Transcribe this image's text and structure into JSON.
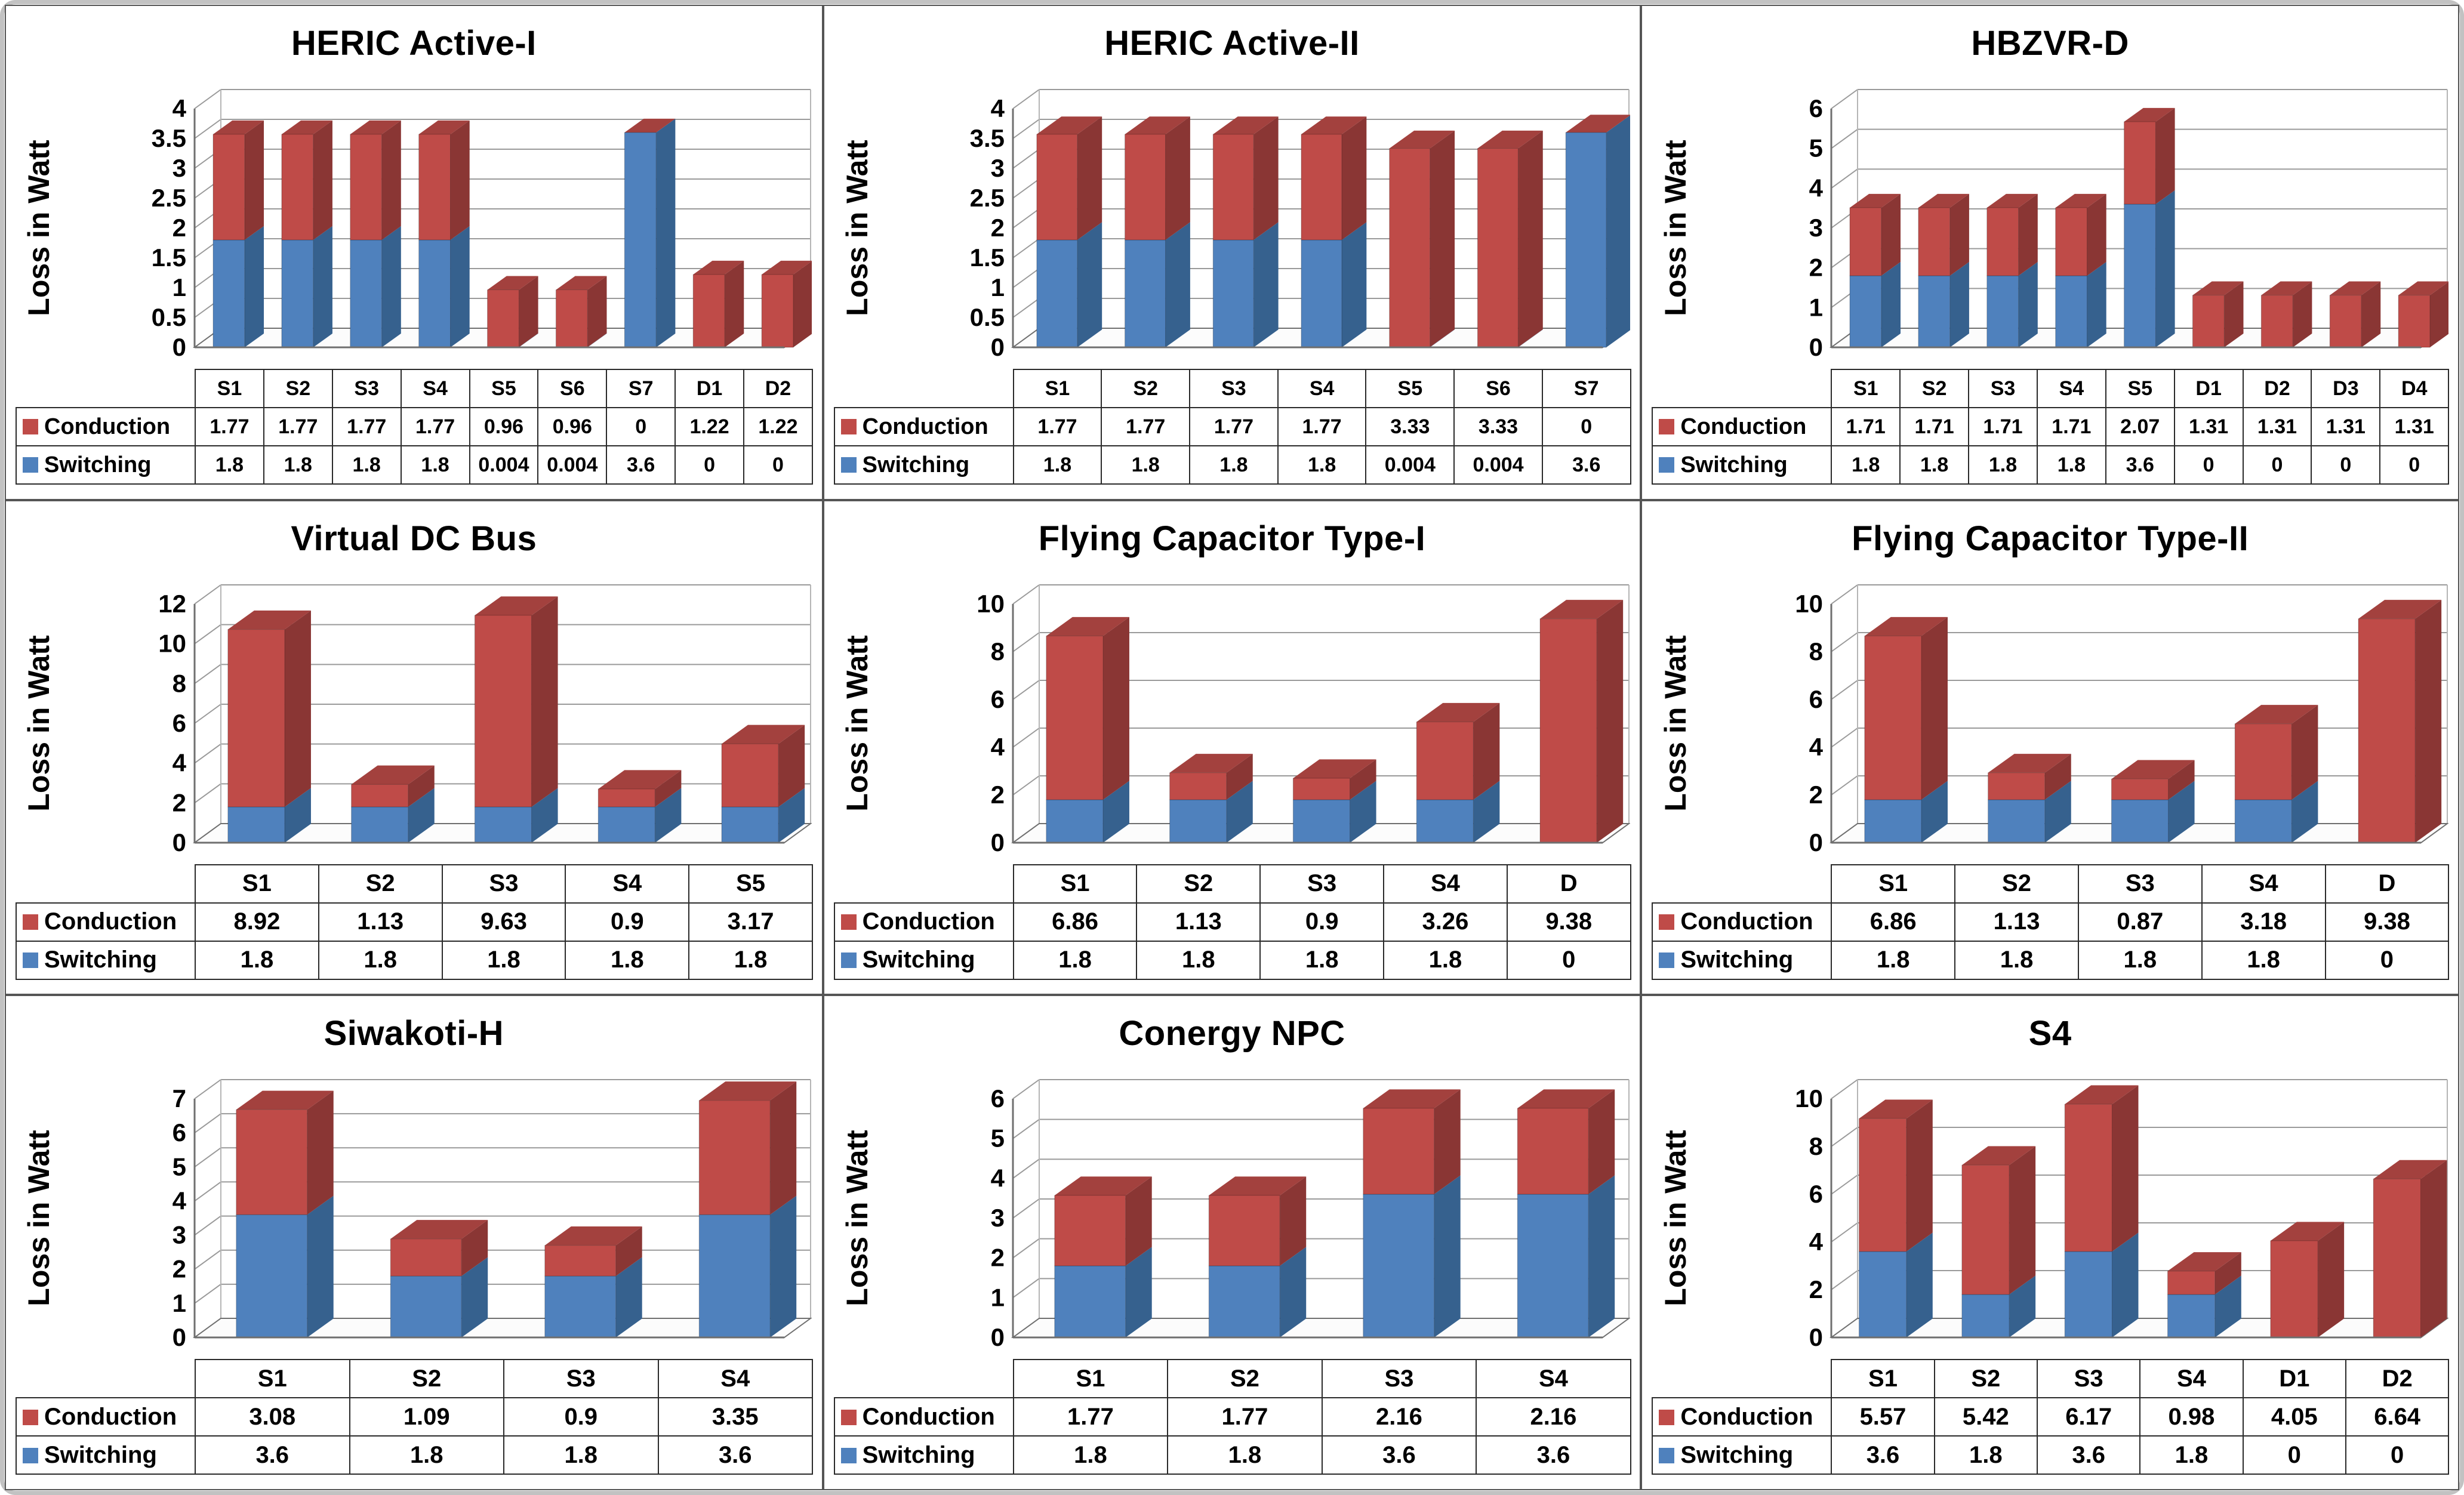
{
  "figure": {
    "ylabel": "Loss in Watt",
    "series_order": [
      "Conduction",
      "Switching"
    ]
  },
  "colors": {
    "switching_front": "#4f81bd",
    "switching_side": "#36618e",
    "conduction_front": "#bf4b48",
    "conduction_side": "#8a3634",
    "conduction_top": "#a3413e",
    "gridline": "#9a9a9a",
    "axis": "#6f6f6f",
    "wall_edge": "#b5b5b5",
    "table_border": "#2a2a2a",
    "panel_border": "#555555"
  },
  "chart_data": [
    {
      "type": "bar",
      "stacked": true,
      "grid": true,
      "legend_position": "table-left",
      "title": "HERIC Active-I",
      "ylabel": "Loss in Watt",
      "ylim": [
        0,
        4
      ],
      "ystep": 0.5,
      "categories": [
        "S1",
        "S2",
        "S3",
        "S4",
        "S5",
        "S6",
        "S7",
        "D1",
        "D2"
      ],
      "series": [
        {
          "name": "Conduction",
          "values": [
            "1.77",
            "1.77",
            "1.77",
            "1.77",
            "0.96",
            "0.96",
            "0",
            "1.22",
            "1.22"
          ]
        },
        {
          "name": "Switching",
          "values": [
            "1.8",
            "1.8",
            "1.8",
            "1.8",
            "0.004",
            "0.004",
            "3.6",
            "0",
            "0"
          ]
        }
      ]
    },
    {
      "type": "bar",
      "stacked": true,
      "grid": true,
      "legend_position": "table-left",
      "title": "HERIC Active-II",
      "ylabel": "Loss in Watt",
      "ylim": [
        0,
        4
      ],
      "ystep": 0.5,
      "categories": [
        "S1",
        "S2",
        "S3",
        "S4",
        "S5",
        "S6",
        "S7"
      ],
      "series": [
        {
          "name": "Conduction",
          "values": [
            "1.77",
            "1.77",
            "1.77",
            "1.77",
            "3.33",
            "3.33",
            "0"
          ]
        },
        {
          "name": "Switching",
          "values": [
            "1.8",
            "1.8",
            "1.8",
            "1.8",
            "0.004",
            "0.004",
            "3.6"
          ]
        }
      ]
    },
    {
      "type": "bar",
      "stacked": true,
      "grid": true,
      "legend_position": "table-left",
      "title": "HBZVR-D",
      "ylabel": "Loss in Watt",
      "ylim": [
        0,
        6
      ],
      "ystep": 1,
      "categories": [
        "S1",
        "S2",
        "S3",
        "S4",
        "S5",
        "D1",
        "D2",
        "D3",
        "D4"
      ],
      "series": [
        {
          "name": "Conduction",
          "values": [
            "1.71",
            "1.71",
            "1.71",
            "1.71",
            "2.07",
            "1.31",
            "1.31",
            "1.31",
            "1.31"
          ]
        },
        {
          "name": "Switching",
          "values": [
            "1.8",
            "1.8",
            "1.8",
            "1.8",
            "3.6",
            "0",
            "0",
            "0",
            "0"
          ]
        }
      ]
    },
    {
      "type": "bar",
      "stacked": true,
      "grid": true,
      "legend_position": "table-left",
      "title": "Virtual DC Bus",
      "ylabel": "Loss in Watt",
      "ylim": [
        0,
        12
      ],
      "ystep": 2,
      "categories": [
        "S1",
        "S2",
        "S3",
        "S4",
        "S5"
      ],
      "series": [
        {
          "name": "Conduction",
          "values": [
            "8.92",
            "1.13",
            "9.63",
            "0.9",
            "3.17"
          ]
        },
        {
          "name": "Switching",
          "values": [
            "1.8",
            "1.8",
            "1.8",
            "1.8",
            "1.8"
          ]
        }
      ]
    },
    {
      "type": "bar",
      "stacked": true,
      "grid": true,
      "legend_position": "table-left",
      "title": "Flying Capacitor Type-I",
      "ylabel": "Loss in Watt",
      "ylim": [
        0,
        10
      ],
      "ystep": 2,
      "categories": [
        "S1",
        "S2",
        "S3",
        "S4",
        "D"
      ],
      "series": [
        {
          "name": "Conduction",
          "values": [
            "6.86",
            "1.13",
            "0.9",
            "3.26",
            "9.38"
          ]
        },
        {
          "name": "Switching",
          "values": [
            "1.8",
            "1.8",
            "1.8",
            "1.8",
            "0"
          ]
        }
      ]
    },
    {
      "type": "bar",
      "stacked": true,
      "grid": true,
      "legend_position": "table-left",
      "title": "Flying Capacitor Type-II",
      "ylabel": "Loss in Watt",
      "ylim": [
        0,
        10
      ],
      "ystep": 2,
      "categories": [
        "S1",
        "S2",
        "S3",
        "S4",
        "D"
      ],
      "series": [
        {
          "name": "Conduction",
          "values": [
            "6.86",
            "1.13",
            "0.87",
            "3.18",
            "9.38"
          ]
        },
        {
          "name": "Switching",
          "values": [
            "1.8",
            "1.8",
            "1.8",
            "1.8",
            "0"
          ]
        }
      ]
    },
    {
      "type": "bar",
      "stacked": true,
      "grid": true,
      "legend_position": "table-left",
      "title": "Siwakoti-H",
      "ylabel": "Loss in Watt",
      "ylim": [
        0,
        7
      ],
      "ystep": 1,
      "categories": [
        "S1",
        "S2",
        "S3",
        "S4"
      ],
      "series": [
        {
          "name": "Conduction",
          "values": [
            "3.08",
            "1.09",
            "0.9",
            "3.35"
          ]
        },
        {
          "name": "Switching",
          "values": [
            "3.6",
            "1.8",
            "1.8",
            "3.6"
          ]
        }
      ]
    },
    {
      "type": "bar",
      "stacked": true,
      "grid": true,
      "legend_position": "table-left",
      "title": "Conergy NPC",
      "ylabel": "Loss in Watt",
      "ylim": [
        0,
        6
      ],
      "ystep": 1,
      "categories": [
        "S1",
        "S2",
        "S3",
        "S4"
      ],
      "series": [
        {
          "name": "Conduction",
          "values": [
            "1.77",
            "1.77",
            "2.16",
            "2.16"
          ]
        },
        {
          "name": "Switching",
          "values": [
            "1.8",
            "1.8",
            "3.6",
            "3.6"
          ]
        }
      ]
    },
    {
      "type": "bar",
      "stacked": true,
      "grid": true,
      "legend_position": "table-left",
      "title": "S4",
      "ylabel": "Loss in Watt",
      "ylim": [
        0,
        10
      ],
      "ystep": 2,
      "categories": [
        "S1",
        "S2",
        "S3",
        "S4",
        "D1",
        "D2"
      ],
      "series": [
        {
          "name": "Conduction",
          "values": [
            "5.57",
            "5.42",
            "6.17",
            "0.98",
            "4.05",
            "6.64"
          ]
        },
        {
          "name": "Switching",
          "values": [
            "3.6",
            "1.8",
            "3.6",
            "1.8",
            "0",
            "0"
          ]
        }
      ]
    }
  ]
}
